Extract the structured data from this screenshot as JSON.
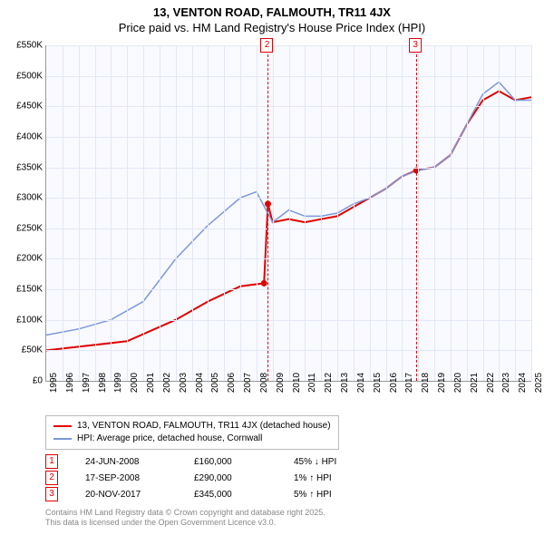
{
  "title": {
    "line1": "13, VENTON ROAD, FALMOUTH, TR11 4JX",
    "line2": "Price paid vs. HM Land Registry's House Price Index (HPI)"
  },
  "chart": {
    "type": "line",
    "background_color": "#f9faff",
    "grid_color": "#e3e7f5",
    "ylim": [
      0,
      550000
    ],
    "ytick_step": 50000,
    "yticks": [
      "£0",
      "£50K",
      "£100K",
      "£150K",
      "£200K",
      "£250K",
      "£300K",
      "£350K",
      "£400K",
      "£450K",
      "£500K",
      "£550K"
    ],
    "xlim": [
      1995,
      2025
    ],
    "xticks": [
      "1995",
      "1996",
      "1997",
      "1998",
      "1999",
      "2000",
      "2001",
      "2002",
      "2003",
      "2004",
      "2005",
      "2006",
      "2007",
      "2008",
      "2009",
      "2010",
      "2011",
      "2012",
      "2013",
      "2014",
      "2015",
      "2016",
      "2017",
      "2018",
      "2019",
      "2020",
      "2021",
      "2022",
      "2023",
      "2024",
      "2025"
    ],
    "series": [
      {
        "name": "property",
        "color": "#e00000",
        "width": 2,
        "points": [
          [
            1995,
            50000
          ],
          [
            2000,
            65000
          ],
          [
            2003,
            100000
          ],
          [
            2005,
            130000
          ],
          [
            2007,
            155000
          ],
          [
            2008.47,
            160000
          ],
          [
            2008.71,
            290000
          ],
          [
            2009,
            260000
          ],
          [
            2010,
            265000
          ],
          [
            2011,
            260000
          ],
          [
            2012,
            265000
          ],
          [
            2013,
            270000
          ],
          [
            2014,
            285000
          ],
          [
            2015,
            300000
          ],
          [
            2016,
            315000
          ],
          [
            2017,
            335000
          ],
          [
            2017.89,
            345000
          ],
          [
            2019,
            350000
          ],
          [
            2020,
            370000
          ],
          [
            2021,
            420000
          ],
          [
            2022,
            460000
          ],
          [
            2023,
            475000
          ],
          [
            2024,
            460000
          ],
          [
            2025,
            465000
          ]
        ]
      },
      {
        "name": "hpi",
        "color": "#7b98d8",
        "width": 1.5,
        "points": [
          [
            1995,
            75000
          ],
          [
            1997,
            85000
          ],
          [
            1999,
            100000
          ],
          [
            2001,
            130000
          ],
          [
            2003,
            200000
          ],
          [
            2005,
            255000
          ],
          [
            2007,
            300000
          ],
          [
            2008,
            310000
          ],
          [
            2009,
            260000
          ],
          [
            2010,
            280000
          ],
          [
            2011,
            270000
          ],
          [
            2012,
            270000
          ],
          [
            2013,
            275000
          ],
          [
            2014,
            290000
          ],
          [
            2015,
            300000
          ],
          [
            2016,
            315000
          ],
          [
            2017,
            335000
          ],
          [
            2018,
            345000
          ],
          [
            2019,
            350000
          ],
          [
            2020,
            370000
          ],
          [
            2021,
            420000
          ],
          [
            2022,
            470000
          ],
          [
            2023,
            490000
          ],
          [
            2024,
            460000
          ],
          [
            2025,
            460000
          ]
        ]
      }
    ],
    "sale_points": [
      {
        "x": 2008.47,
        "y": 160000,
        "n": 1
      },
      {
        "x": 2008.71,
        "y": 290000,
        "n": 2
      },
      {
        "x": 2017.89,
        "y": 345000,
        "n": 3
      }
    ],
    "markers": [
      {
        "x": 2008.71,
        "label": "2"
      },
      {
        "x": 2017.89,
        "label": "3"
      }
    ]
  },
  "legend": {
    "items": [
      {
        "color": "#e00000",
        "label": "13, VENTON ROAD, FALMOUTH, TR11 4JX (detached house)"
      },
      {
        "color": "#7b98d8",
        "label": "HPI: Average price, detached house, Cornwall"
      }
    ]
  },
  "sales": [
    {
      "n": "1",
      "date": "24-JUN-2008",
      "price": "£160,000",
      "delta": "45% ↓ HPI"
    },
    {
      "n": "2",
      "date": "17-SEP-2008",
      "price": "£290,000",
      "delta": "1% ↑ HPI"
    },
    {
      "n": "3",
      "date": "20-NOV-2017",
      "price": "£345,000",
      "delta": "5% ↑ HPI"
    }
  ],
  "footer": {
    "line1": "Contains HM Land Registry data © Crown copyright and database right 2025.",
    "line2": "This data is licensed under the Open Government Licence v3.0."
  }
}
